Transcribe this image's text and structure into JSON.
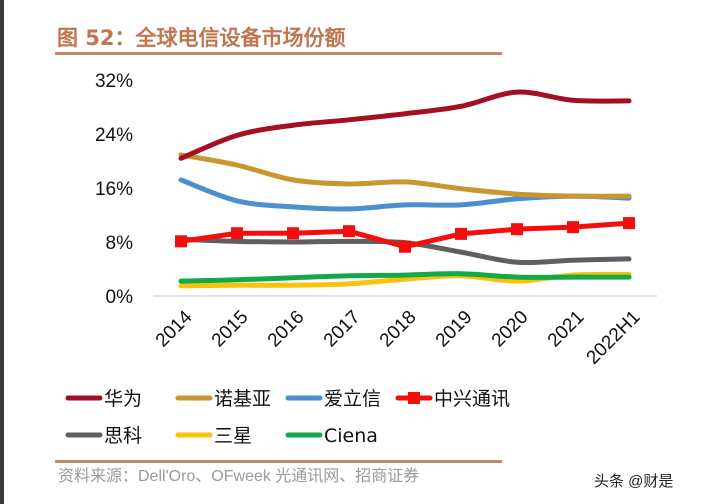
{
  "title": "图 52：全球电信设备市场份额",
  "source": "资料来源：Dell'Oro、OFweek 光通讯网、招商证券",
  "watermark": "头条 @财是",
  "chart_data": {
    "type": "line",
    "categories": [
      "2014",
      "2015",
      "2016",
      "2017",
      "2018",
      "2019",
      "2020",
      "2021",
      "2022H1"
    ],
    "ylim": [
      0,
      32
    ],
    "yticks": [
      "0%",
      "8%",
      "16%",
      "24%",
      "32%"
    ],
    "ytick_values": [
      0,
      8,
      16,
      24,
      32
    ],
    "legend_position": "bottom",
    "series": [
      {
        "name": "华为",
        "color": "#a50f24",
        "values": [
          20.4,
          23.8,
          25.3,
          26.1,
          27.0,
          28.1,
          30.2,
          29.0,
          28.9
        ]
      },
      {
        "name": "诺基亚",
        "color": "#c9962f",
        "values": [
          20.9,
          19.4,
          17.2,
          16.6,
          16.9,
          15.9,
          15.1,
          14.8,
          14.8
        ]
      },
      {
        "name": "爱立信",
        "color": "#4a8fce",
        "values": [
          17.2,
          14.1,
          13.2,
          12.9,
          13.5,
          13.5,
          14.4,
          14.8,
          14.5
        ]
      },
      {
        "name": "中兴通讯",
        "color": "#f50d0d",
        "marker": "square",
        "values": [
          8.1,
          9.3,
          9.3,
          9.6,
          7.3,
          9.2,
          9.9,
          10.2,
          10.8
        ]
      },
      {
        "name": "思科",
        "color": "#5f5f5f",
        "values": [
          8.4,
          8.1,
          8.0,
          8.1,
          7.9,
          6.5,
          5.0,
          5.3,
          5.5
        ]
      },
      {
        "name": "三星",
        "color": "#fac20a",
        "values": [
          1.5,
          1.6,
          1.6,
          1.8,
          2.5,
          3.0,
          2.2,
          3.1,
          3.2
        ]
      },
      {
        "name": "Ciena",
        "color": "#13a84a",
        "values": [
          2.2,
          2.4,
          2.7,
          3.0,
          3.1,
          3.3,
          2.8,
          2.8,
          2.8
        ]
      }
    ]
  }
}
